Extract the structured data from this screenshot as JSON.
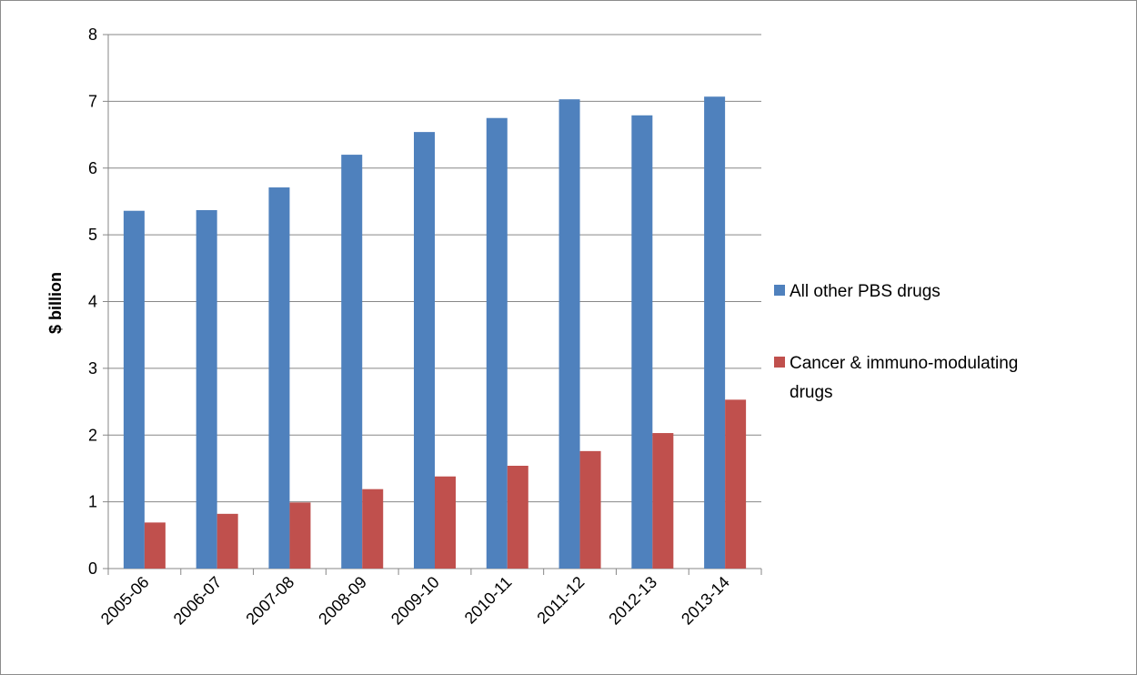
{
  "chart_data": {
    "type": "bar",
    "title": "",
    "xlabel": "",
    "ylabel": "$ billion",
    "ylim": [
      0,
      8
    ],
    "yticks": [
      0,
      1,
      2,
      3,
      4,
      5,
      6,
      7,
      8
    ],
    "grid": true,
    "legend_position": "right",
    "categories": [
      "2005-06",
      "2006-07",
      "2007-08",
      "2008-09",
      "2009-10",
      "2010-11",
      "2011-12",
      "2012-13",
      "2013-14"
    ],
    "series": [
      {
        "name": "All other PBS drugs",
        "color": "#4F81BD",
        "values": [
          5.36,
          5.37,
          5.71,
          6.2,
          6.54,
          6.75,
          7.03,
          6.79,
          7.07
        ]
      },
      {
        "name": "Cancer & immuno-modulating drugs",
        "legend_lines": [
          "Cancer & immuno-modulating",
          "drugs"
        ],
        "color": "#C0504D",
        "values": [
          0.69,
          0.82,
          0.99,
          1.19,
          1.38,
          1.54,
          1.76,
          2.03,
          2.53
        ]
      }
    ]
  }
}
